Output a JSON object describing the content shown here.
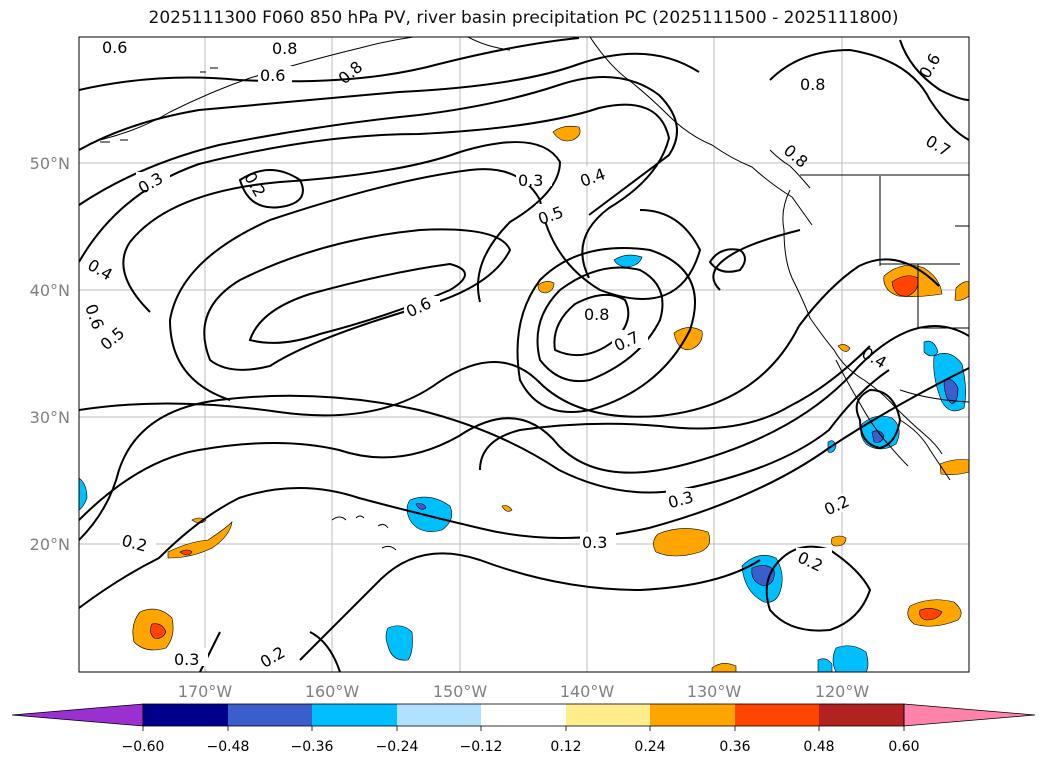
{
  "title": "2025111300 F060 850 hPa PV, river basin precipitation PC (2025111500 - 2025111800)",
  "map": {
    "lon_ticks": [
      "170°W",
      "160°W",
      "150°W",
      "140°W",
      "130°W",
      "120°W"
    ],
    "lat_ticks": [
      "50°N",
      "40°N",
      "30°N",
      "20°N"
    ],
    "pv_labels": [
      "0.6",
      "0.8",
      "0.8",
      "0.6",
      "0.6",
      "0.7",
      "0.8",
      "0.8",
      "0.3",
      "0.2",
      "0.3",
      "0.4",
      "0.5",
      "0.6",
      "0.8",
      "0.7",
      "0.4",
      "0.6",
      "0.5",
      "0.3",
      "0.3",
      "0.2",
      "0.2",
      "0.2",
      "0.2",
      "0.3"
    ],
    "gridline_color": "#bdbdbd",
    "contour_color": "#000000"
  },
  "colorbar": {
    "tick_labels": [
      "−0.60",
      "−0.48",
      "−0.36",
      "−0.24",
      "−0.12",
      "0.12",
      "0.24",
      "0.36",
      "0.48",
      "0.60"
    ],
    "colors": [
      "#9b30d0",
      "#00008b",
      "#3a5fcd",
      "#00bfff",
      "#b0e2ff",
      "#ffffff",
      "#ffec8b",
      "#ffa500",
      "#ff4500",
      "#b22222",
      "#ff82ab"
    ]
  }
}
